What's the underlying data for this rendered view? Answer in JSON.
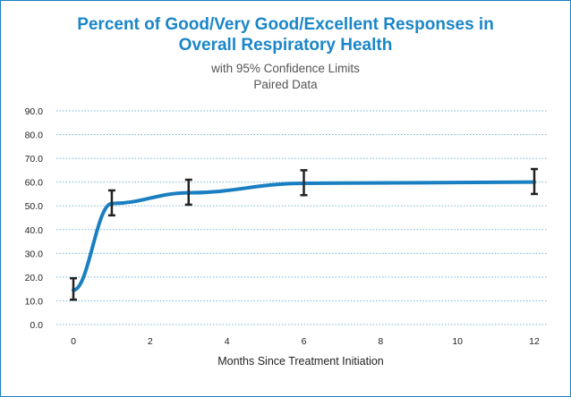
{
  "chart_data": {
    "type": "line",
    "title": "Percent of Good/Very Good/Excellent Responses in Overall Respiratory Health",
    "title_lines": [
      "Percent of Good/Very Good/Excellent Responses in",
      "Overall Respiratory Health"
    ],
    "subtitle_lines": [
      "with 95% Confidence Limits",
      "Paired Data"
    ],
    "xlabel": "Months Since Treatment Initiation",
    "ylabel": "",
    "xlim": [
      0,
      12
    ],
    "ylim": [
      0,
      90
    ],
    "x_ticks": [
      0,
      2,
      4,
      6,
      8,
      10,
      12
    ],
    "y_ticks": [
      "0.0",
      "10.0",
      "20.0",
      "30.0",
      "40.0",
      "50.0",
      "60.0",
      "70.0",
      "80.0",
      "90.0"
    ],
    "grid": "horizontal dotted",
    "series": [
      {
        "x": [
          0,
          1,
          3,
          6,
          12
        ],
        "y": [
          14.5,
          51.0,
          55.5,
          59.5,
          60.0
        ],
        "lower": [
          10.5,
          46.0,
          50.5,
          54.5,
          55.0
        ],
        "upper": [
          19.5,
          56.5,
          61.0,
          65.0,
          65.5
        ]
      }
    ],
    "colors": {
      "line": "#1a7fc1",
      "error_bars": "#222222",
      "grid": "#7ab3d6",
      "title": "#1a86c8"
    }
  }
}
